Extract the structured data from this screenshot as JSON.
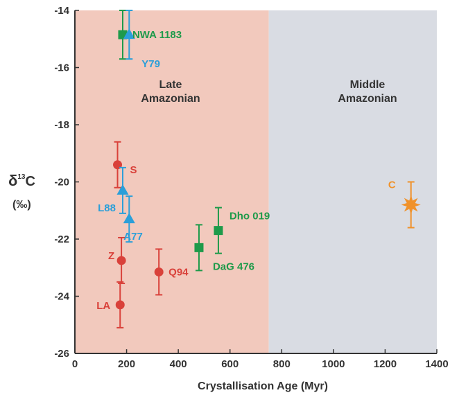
{
  "chart_data": {
    "type": "scatter",
    "xlabel": "Crystallisation Age (Myr)",
    "ylabel_main": "δ",
    "ylabel_sup": "13",
    "ylabel_tail": "C",
    "ylabel_unit": "(‰)",
    "xlim": [
      0,
      1400
    ],
    "ylim": [
      -26,
      -14
    ],
    "xticks": [
      0,
      200,
      400,
      600,
      800,
      1000,
      1200,
      1400
    ],
    "yticks": [
      -26,
      -24,
      -22,
      -20,
      -18,
      -16,
      -14
    ],
    "regions": [
      {
        "label_line1": "Late",
        "label_line2": "Amazonian",
        "x_range": [
          0,
          750
        ],
        "color": "#f2c9bd"
      },
      {
        "label_line1": "Middle",
        "label_line2": "Amazonian",
        "x_range": [
          750,
          1400
        ],
        "color": "#d9dce3"
      }
    ],
    "points": [
      {
        "label": "NWA 1183",
        "x": 185,
        "y": -14.85,
        "yerr": 0.85,
        "marker": "square",
        "color": "#1e9a4a"
      },
      {
        "label": "Y79",
        "x": 210,
        "y": -14.85,
        "yerr": 0.85,
        "marker": "triangle",
        "color": "#2b9fd9"
      },
      {
        "label": "S",
        "x": 165,
        "y": -19.4,
        "yerr": 0.8,
        "marker": "circle",
        "color": "#d9413a"
      },
      {
        "label": "L88",
        "x": 185,
        "y": -20.3,
        "yerr": 0.8,
        "marker": "triangle",
        "color": "#2b9fd9"
      },
      {
        "label": "A77",
        "x": 210,
        "y": -21.3,
        "yerr": 0.8,
        "marker": "triangle",
        "color": "#2b9fd9"
      },
      {
        "label": "Dho 019",
        "x": 555,
        "y": -21.7,
        "yerr": 0.8,
        "marker": "square",
        "color": "#1e9a4a"
      },
      {
        "label": "DaG 476",
        "x": 480,
        "y": -22.3,
        "yerr": 0.8,
        "marker": "square",
        "color": "#1e9a4a"
      },
      {
        "label": "Z",
        "x": 180,
        "y": -22.75,
        "yerr": 0.8,
        "marker": "circle",
        "color": "#d9413a"
      },
      {
        "label": "Q94",
        "x": 325,
        "y": -23.15,
        "yerr": 0.8,
        "marker": "circle",
        "color": "#d9413a"
      },
      {
        "label": "LA",
        "x": 175,
        "y": -24.3,
        "yerr": 0.8,
        "marker": "circle",
        "color": "#d9413a"
      },
      {
        "label": "C",
        "x": 1300,
        "y": -20.8,
        "yerr": 0.8,
        "marker": "star",
        "color": "#f0922b"
      }
    ]
  }
}
